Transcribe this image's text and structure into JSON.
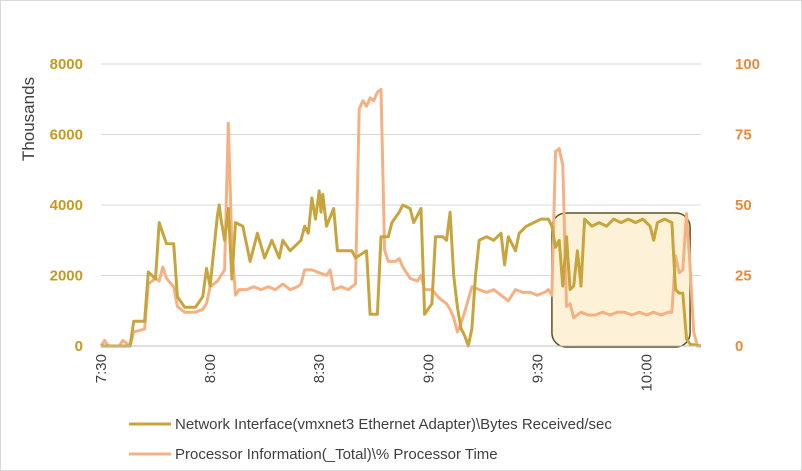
{
  "chart_data": {
    "type": "line",
    "title": "",
    "xlabel": "",
    "ylabel_left": "Thousands",
    "ylabel_right": "",
    "x_ticks": [
      "7:30",
      "8:00",
      "8:30",
      "9:00",
      "9:30",
      "10:00"
    ],
    "x_range_minutes": [
      450,
      615
    ],
    "ylim_left": [
      0,
      8000
    ],
    "ylim_right": [
      0,
      100
    ],
    "y_ticks_left": [
      "0",
      "2000",
      "4000",
      "6000",
      "8000"
    ],
    "y_ticks_right": [
      "0",
      "25",
      "50",
      "75",
      "100"
    ],
    "grid": "horizontal",
    "legend_position": "bottom",
    "series": [
      {
        "name": "Network Interface(vmxnet3 Ethernet Adapter)\\Bytes Received/sec",
        "axis": "left",
        "color": "#c8a53c",
        "points": [
          [
            450,
            0
          ],
          [
            458,
            0
          ],
          [
            459,
            700
          ],
          [
            462,
            700
          ],
          [
            463,
            2100
          ],
          [
            465,
            1900
          ],
          [
            466,
            3500
          ],
          [
            467,
            3200
          ],
          [
            468,
            2900
          ],
          [
            470,
            2900
          ],
          [
            471,
            1400
          ],
          [
            473,
            1100
          ],
          [
            476,
            1100
          ],
          [
            478,
            1400
          ],
          [
            479,
            2200
          ],
          [
            480,
            1700
          ],
          [
            482,
            3700
          ],
          [
            482.5,
            4000
          ],
          [
            483,
            3600
          ],
          [
            484,
            3000
          ],
          [
            485,
            3900
          ],
          [
            486,
            1900
          ],
          [
            487,
            3500
          ],
          [
            489,
            3400
          ],
          [
            491,
            2400
          ],
          [
            493,
            3200
          ],
          [
            495,
            2500
          ],
          [
            497,
            3000
          ],
          [
            499,
            2500
          ],
          [
            500,
            3000
          ],
          [
            502,
            2700
          ],
          [
            505,
            3000
          ],
          [
            506,
            3400
          ],
          [
            507,
            3200
          ],
          [
            508,
            4200
          ],
          [
            509,
            3600
          ],
          [
            510,
            4400
          ],
          [
            510.5,
            3800
          ],
          [
            511,
            4300
          ],
          [
            512,
            3400
          ],
          [
            514,
            3900
          ],
          [
            515,
            2700
          ],
          [
            519,
            2700
          ],
          [
            520,
            2500
          ],
          [
            523,
            2700
          ],
          [
            524,
            900
          ],
          [
            526,
            900
          ],
          [
            527,
            3100
          ],
          [
            529,
            3100
          ],
          [
            530,
            3500
          ],
          [
            532,
            3800
          ],
          [
            533,
            4000
          ],
          [
            535,
            3900
          ],
          [
            536,
            3500
          ],
          [
            538,
            3900
          ],
          [
            539,
            900
          ],
          [
            541,
            1200
          ],
          [
            542,
            3100
          ],
          [
            544,
            3100
          ],
          [
            545,
            3000
          ],
          [
            546,
            3800
          ],
          [
            547,
            2000
          ],
          [
            548,
            1100
          ],
          [
            549,
            500
          ],
          [
            550,
            300
          ],
          [
            551,
            0
          ],
          [
            552,
            500
          ],
          [
            553,
            2000
          ],
          [
            554,
            3000
          ],
          [
            556,
            3100
          ],
          [
            558,
            3000
          ],
          [
            560,
            3200
          ],
          [
            561,
            2300
          ],
          [
            562,
            3100
          ],
          [
            564,
            2700
          ],
          [
            565,
            3200
          ],
          [
            567,
            3400
          ],
          [
            569,
            3500
          ],
          [
            571,
            3600
          ],
          [
            573,
            3600
          ],
          [
            574,
            3400
          ],
          [
            575,
            2800
          ],
          [
            576,
            3000
          ],
          [
            577,
            1700
          ],
          [
            578,
            3100
          ],
          [
            579,
            1600
          ],
          [
            580,
            1700
          ],
          [
            581,
            2700
          ],
          [
            582,
            1700
          ],
          [
            583,
            3600
          ],
          [
            585,
            3400
          ],
          [
            587,
            3500
          ],
          [
            589,
            3400
          ],
          [
            591,
            3600
          ],
          [
            593,
            3500
          ],
          [
            595,
            3600
          ],
          [
            597,
            3500
          ],
          [
            599,
            3600
          ],
          [
            601,
            3400
          ],
          [
            602,
            3000
          ],
          [
            603,
            3500
          ],
          [
            605,
            3600
          ],
          [
            607,
            3500
          ],
          [
            608,
            1600
          ],
          [
            609,
            1500
          ],
          [
            610,
            1500
          ],
          [
            611,
            200
          ],
          [
            612,
            50
          ],
          [
            615,
            0
          ]
        ]
      },
      {
        "name": "Processor Information(_Total)\\% Processor Time",
        "axis": "right",
        "color": "#f4b183",
        "points": [
          [
            450,
            0
          ],
          [
            451,
            2
          ],
          [
            452,
            0
          ],
          [
            455,
            0
          ],
          [
            456,
            2
          ],
          [
            458,
            0
          ],
          [
            459,
            5
          ],
          [
            462,
            6
          ],
          [
            463,
            22
          ],
          [
            465,
            24
          ],
          [
            466,
            23
          ],
          [
            467,
            28
          ],
          [
            468,
            24
          ],
          [
            470,
            21
          ],
          [
            471,
            14
          ],
          [
            473,
            12
          ],
          [
            476,
            12
          ],
          [
            478,
            13
          ],
          [
            479,
            15
          ],
          [
            480,
            21
          ],
          [
            482,
            23
          ],
          [
            484,
            27
          ],
          [
            485,
            79
          ],
          [
            486,
            35
          ],
          [
            487,
            18
          ],
          [
            488,
            20
          ],
          [
            490,
            20
          ],
          [
            492,
            21
          ],
          [
            494,
            20
          ],
          [
            496,
            21
          ],
          [
            498,
            20
          ],
          [
            500,
            22
          ],
          [
            502,
            20
          ],
          [
            504,
            21
          ],
          [
            505,
            22
          ],
          [
            506,
            27
          ],
          [
            508,
            27
          ],
          [
            510,
            26
          ],
          [
            512,
            25
          ],
          [
            513,
            27
          ],
          [
            514,
            20
          ],
          [
            516,
            21
          ],
          [
            518,
            20
          ],
          [
            519,
            21
          ],
          [
            520,
            22
          ],
          [
            521,
            84
          ],
          [
            522,
            87
          ],
          [
            523,
            85
          ],
          [
            524,
            88
          ],
          [
            525,
            87
          ],
          [
            526,
            90
          ],
          [
            527,
            91
          ],
          [
            528,
            34
          ],
          [
            529,
            30
          ],
          [
            531,
            30
          ],
          [
            532,
            31
          ],
          [
            533,
            28
          ],
          [
            535,
            24
          ],
          [
            537,
            23
          ],
          [
            538,
            25
          ],
          [
            539,
            20
          ],
          [
            541,
            20
          ],
          [
            543,
            17
          ],
          [
            545,
            15
          ],
          [
            546,
            13
          ],
          [
            547,
            10
          ],
          [
            548,
            5
          ],
          [
            549,
            8
          ],
          [
            550,
            12
          ],
          [
            552,
            21
          ],
          [
            554,
            20
          ],
          [
            556,
            19
          ],
          [
            558,
            20
          ],
          [
            560,
            18
          ],
          [
            562,
            16
          ],
          [
            564,
            20
          ],
          [
            566,
            19
          ],
          [
            568,
            19
          ],
          [
            570,
            18
          ],
          [
            572,
            19
          ],
          [
            573,
            20
          ],
          [
            574,
            18
          ],
          [
            575,
            69
          ],
          [
            576,
            70
          ],
          [
            577,
            64
          ],
          [
            578,
            14
          ],
          [
            579,
            15
          ],
          [
            580,
            10
          ],
          [
            582,
            12
          ],
          [
            584,
            11
          ],
          [
            586,
            11
          ],
          [
            588,
            12
          ],
          [
            590,
            11
          ],
          [
            592,
            12
          ],
          [
            594,
            12
          ],
          [
            596,
            11
          ],
          [
            598,
            12
          ],
          [
            600,
            11
          ],
          [
            602,
            12
          ],
          [
            604,
            11
          ],
          [
            606,
            12
          ],
          [
            607,
            12
          ],
          [
            608,
            32
          ],
          [
            609,
            26
          ],
          [
            610,
            27
          ],
          [
            611,
            47
          ],
          [
            612,
            28
          ],
          [
            613,
            5
          ],
          [
            614,
            0
          ],
          [
            615,
            0
          ]
        ]
      }
    ],
    "annotations": [
      {
        "type": "highlight-box",
        "x_range_minutes": [
          574,
          612
        ],
        "fill": "#fdf2d8",
        "stroke": "#595324"
      }
    ]
  }
}
